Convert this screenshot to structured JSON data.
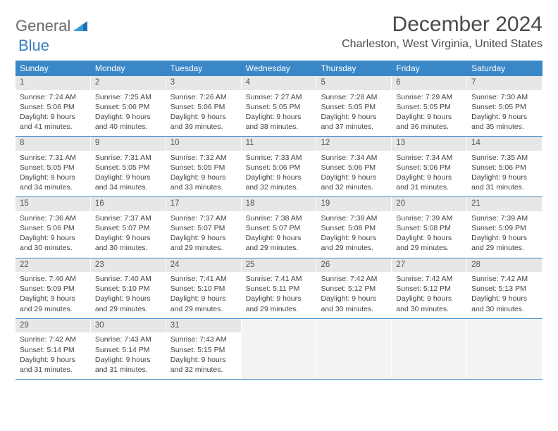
{
  "logo": {
    "word1": "General",
    "word2": "Blue"
  },
  "title": "December 2024",
  "location": "Charleston, West Virginia, United States",
  "colors": {
    "header_bg": "#3a87c7",
    "header_text": "#ffffff",
    "daynum_bg": "#e7e7e7",
    "empty_bg": "#f3f3f3",
    "row_border": "#3a87c7",
    "text": "#444444",
    "logo_gray": "#6b6b6b",
    "logo_blue": "#3a7fc4"
  },
  "daysOfWeek": [
    "Sunday",
    "Monday",
    "Tuesday",
    "Wednesday",
    "Thursday",
    "Friday",
    "Saturday"
  ],
  "weeks": [
    [
      {
        "n": "1",
        "sr": "Sunrise: 7:24 AM",
        "ss": "Sunset: 5:06 PM",
        "d1": "Daylight: 9 hours",
        "d2": "and 41 minutes."
      },
      {
        "n": "2",
        "sr": "Sunrise: 7:25 AM",
        "ss": "Sunset: 5:06 PM",
        "d1": "Daylight: 9 hours",
        "d2": "and 40 minutes."
      },
      {
        "n": "3",
        "sr": "Sunrise: 7:26 AM",
        "ss": "Sunset: 5:06 PM",
        "d1": "Daylight: 9 hours",
        "d2": "and 39 minutes."
      },
      {
        "n": "4",
        "sr": "Sunrise: 7:27 AM",
        "ss": "Sunset: 5:05 PM",
        "d1": "Daylight: 9 hours",
        "d2": "and 38 minutes."
      },
      {
        "n": "5",
        "sr": "Sunrise: 7:28 AM",
        "ss": "Sunset: 5:05 PM",
        "d1": "Daylight: 9 hours",
        "d2": "and 37 minutes."
      },
      {
        "n": "6",
        "sr": "Sunrise: 7:29 AM",
        "ss": "Sunset: 5:05 PM",
        "d1": "Daylight: 9 hours",
        "d2": "and 36 minutes."
      },
      {
        "n": "7",
        "sr": "Sunrise: 7:30 AM",
        "ss": "Sunset: 5:05 PM",
        "d1": "Daylight: 9 hours",
        "d2": "and 35 minutes."
      }
    ],
    [
      {
        "n": "8",
        "sr": "Sunrise: 7:31 AM",
        "ss": "Sunset: 5:05 PM",
        "d1": "Daylight: 9 hours",
        "d2": "and 34 minutes."
      },
      {
        "n": "9",
        "sr": "Sunrise: 7:31 AM",
        "ss": "Sunset: 5:05 PM",
        "d1": "Daylight: 9 hours",
        "d2": "and 34 minutes."
      },
      {
        "n": "10",
        "sr": "Sunrise: 7:32 AM",
        "ss": "Sunset: 5:05 PM",
        "d1": "Daylight: 9 hours",
        "d2": "and 33 minutes."
      },
      {
        "n": "11",
        "sr": "Sunrise: 7:33 AM",
        "ss": "Sunset: 5:06 PM",
        "d1": "Daylight: 9 hours",
        "d2": "and 32 minutes."
      },
      {
        "n": "12",
        "sr": "Sunrise: 7:34 AM",
        "ss": "Sunset: 5:06 PM",
        "d1": "Daylight: 9 hours",
        "d2": "and 32 minutes."
      },
      {
        "n": "13",
        "sr": "Sunrise: 7:34 AM",
        "ss": "Sunset: 5:06 PM",
        "d1": "Daylight: 9 hours",
        "d2": "and 31 minutes."
      },
      {
        "n": "14",
        "sr": "Sunrise: 7:35 AM",
        "ss": "Sunset: 5:06 PM",
        "d1": "Daylight: 9 hours",
        "d2": "and 31 minutes."
      }
    ],
    [
      {
        "n": "15",
        "sr": "Sunrise: 7:36 AM",
        "ss": "Sunset: 5:06 PM",
        "d1": "Daylight: 9 hours",
        "d2": "and 30 minutes."
      },
      {
        "n": "16",
        "sr": "Sunrise: 7:37 AM",
        "ss": "Sunset: 5:07 PM",
        "d1": "Daylight: 9 hours",
        "d2": "and 30 minutes."
      },
      {
        "n": "17",
        "sr": "Sunrise: 7:37 AM",
        "ss": "Sunset: 5:07 PM",
        "d1": "Daylight: 9 hours",
        "d2": "and 29 minutes."
      },
      {
        "n": "18",
        "sr": "Sunrise: 7:38 AM",
        "ss": "Sunset: 5:07 PM",
        "d1": "Daylight: 9 hours",
        "d2": "and 29 minutes."
      },
      {
        "n": "19",
        "sr": "Sunrise: 7:38 AM",
        "ss": "Sunset: 5:08 PM",
        "d1": "Daylight: 9 hours",
        "d2": "and 29 minutes."
      },
      {
        "n": "20",
        "sr": "Sunrise: 7:39 AM",
        "ss": "Sunset: 5:08 PM",
        "d1": "Daylight: 9 hours",
        "d2": "and 29 minutes."
      },
      {
        "n": "21",
        "sr": "Sunrise: 7:39 AM",
        "ss": "Sunset: 5:09 PM",
        "d1": "Daylight: 9 hours",
        "d2": "and 29 minutes."
      }
    ],
    [
      {
        "n": "22",
        "sr": "Sunrise: 7:40 AM",
        "ss": "Sunset: 5:09 PM",
        "d1": "Daylight: 9 hours",
        "d2": "and 29 minutes."
      },
      {
        "n": "23",
        "sr": "Sunrise: 7:40 AM",
        "ss": "Sunset: 5:10 PM",
        "d1": "Daylight: 9 hours",
        "d2": "and 29 minutes."
      },
      {
        "n": "24",
        "sr": "Sunrise: 7:41 AM",
        "ss": "Sunset: 5:10 PM",
        "d1": "Daylight: 9 hours",
        "d2": "and 29 minutes."
      },
      {
        "n": "25",
        "sr": "Sunrise: 7:41 AM",
        "ss": "Sunset: 5:11 PM",
        "d1": "Daylight: 9 hours",
        "d2": "and 29 minutes."
      },
      {
        "n": "26",
        "sr": "Sunrise: 7:42 AM",
        "ss": "Sunset: 5:12 PM",
        "d1": "Daylight: 9 hours",
        "d2": "and 30 minutes."
      },
      {
        "n": "27",
        "sr": "Sunrise: 7:42 AM",
        "ss": "Sunset: 5:12 PM",
        "d1": "Daylight: 9 hours",
        "d2": "and 30 minutes."
      },
      {
        "n": "28",
        "sr": "Sunrise: 7:42 AM",
        "ss": "Sunset: 5:13 PM",
        "d1": "Daylight: 9 hours",
        "d2": "and 30 minutes."
      }
    ],
    [
      {
        "n": "29",
        "sr": "Sunrise: 7:42 AM",
        "ss": "Sunset: 5:14 PM",
        "d1": "Daylight: 9 hours",
        "d2": "and 31 minutes."
      },
      {
        "n": "30",
        "sr": "Sunrise: 7:43 AM",
        "ss": "Sunset: 5:14 PM",
        "d1": "Daylight: 9 hours",
        "d2": "and 31 minutes."
      },
      {
        "n": "31",
        "sr": "Sunrise: 7:43 AM",
        "ss": "Sunset: 5:15 PM",
        "d1": "Daylight: 9 hours",
        "d2": "and 32 minutes."
      },
      null,
      null,
      null,
      null
    ]
  ]
}
